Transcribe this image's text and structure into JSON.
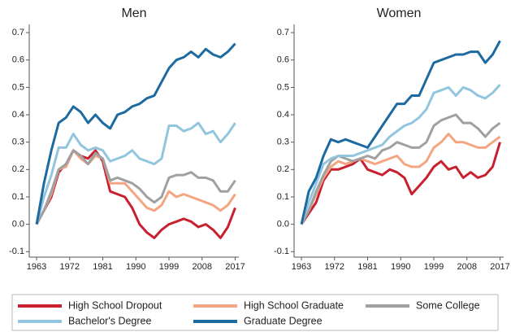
{
  "chart_data": [
    {
      "type": "line",
      "title": "Men",
      "x": [
        1963,
        1965,
        1967,
        1969,
        1971,
        1973,
        1975,
        1977,
        1979,
        1981,
        1983,
        1985,
        1987,
        1989,
        1991,
        1993,
        1995,
        1997,
        1999,
        2001,
        2003,
        2005,
        2007,
        2009,
        2011,
        2013,
        2015,
        2017
      ],
      "xlim": [
        1961,
        2018
      ],
      "xticks": [
        1963,
        1972,
        1981,
        1990,
        1999,
        2008,
        2017
      ],
      "ylim": [
        -0.12,
        0.73
      ],
      "yticks": [
        -0.1,
        {
          "value": 0,
          "label": "0.0"
        },
        0.1,
        0.2,
        0.3,
        0.4,
        0.5,
        0.6,
        0.7
      ],
      "series": [
        {
          "name": "High School Dropout",
          "color": "#c8202f",
          "values": [
            0,
            0.05,
            0.1,
            0.19,
            0.22,
            0.27,
            0.25,
            0.24,
            0.27,
            0.23,
            0.12,
            0.11,
            0.1,
            0.06,
            0.0,
            -0.03,
            -0.05,
            -0.02,
            0.0,
            0.01,
            0.02,
            0.01,
            -0.01,
            0.0,
            -0.02,
            -0.05,
            -0.01,
            0.06
          ]
        },
        {
          "name": "High School Graduate",
          "color": "#f4a582",
          "values": [
            0,
            0.05,
            0.11,
            0.2,
            0.21,
            0.27,
            0.24,
            0.22,
            0.25,
            0.24,
            0.15,
            0.15,
            0.15,
            0.12,
            0.09,
            0.06,
            0.05,
            0.07,
            0.12,
            0.1,
            0.11,
            0.1,
            0.09,
            0.08,
            0.07,
            0.05,
            0.07,
            0.11
          ]
        },
        {
          "name": "Some College",
          "color": "#a0a0a0",
          "values": [
            0,
            0.05,
            0.12,
            0.2,
            0.22,
            0.27,
            0.25,
            0.22,
            0.26,
            0.24,
            0.16,
            0.17,
            0.16,
            0.15,
            0.13,
            0.1,
            0.08,
            0.1,
            0.17,
            0.18,
            0.18,
            0.19,
            0.17,
            0.17,
            0.16,
            0.12,
            0.12,
            0.16
          ]
        },
        {
          "name": "Bachelor's Degree",
          "color": "#92c5de",
          "values": [
            0,
            0.1,
            0.18,
            0.28,
            0.28,
            0.33,
            0.29,
            0.27,
            0.28,
            0.27,
            0.23,
            0.24,
            0.25,
            0.27,
            0.24,
            0.23,
            0.22,
            0.24,
            0.36,
            0.36,
            0.34,
            0.35,
            0.37,
            0.33,
            0.34,
            0.3,
            0.33,
            0.37
          ]
        },
        {
          "name": "Graduate Degree",
          "color": "#1c6aa0",
          "values": [
            0,
            0.15,
            0.27,
            0.37,
            0.39,
            0.43,
            0.41,
            0.37,
            0.4,
            0.37,
            0.35,
            0.4,
            0.41,
            0.43,
            0.44,
            0.46,
            0.47,
            0.52,
            0.57,
            0.6,
            0.61,
            0.63,
            0.61,
            0.64,
            0.62,
            0.61,
            0.63,
            0.66
          ]
        }
      ]
    },
    {
      "type": "line",
      "title": "Women",
      "x": [
        1963,
        1965,
        1967,
        1969,
        1971,
        1973,
        1975,
        1977,
        1979,
        1981,
        1983,
        1985,
        1987,
        1989,
        1991,
        1993,
        1995,
        1997,
        1999,
        2001,
        2003,
        2005,
        2007,
        2009,
        2011,
        2013,
        2015,
        2017
      ],
      "xlim": [
        1961,
        2018
      ],
      "xticks": [
        1963,
        1972,
        1981,
        1990,
        1999,
        2008,
        2017
      ],
      "ylim": [
        -0.12,
        0.73
      ],
      "yticks": [
        -0.1,
        {
          "value": 0,
          "label": "0.0"
        },
        0.1,
        0.2,
        0.3,
        0.4,
        0.5,
        0.6,
        0.7
      ],
      "series": [
        {
          "name": "High School Dropout",
          "color": "#c8202f",
          "values": [
            0,
            0.04,
            0.08,
            0.16,
            0.2,
            0.2,
            0.21,
            0.22,
            0.24,
            0.2,
            0.19,
            0.18,
            0.2,
            0.19,
            0.17,
            0.11,
            0.14,
            0.17,
            0.21,
            0.23,
            0.2,
            0.21,
            0.17,
            0.19,
            0.17,
            0.18,
            0.21,
            0.3
          ]
        },
        {
          "name": "High School Graduate",
          "color": "#f4a582",
          "values": [
            0,
            0.05,
            0.11,
            0.17,
            0.21,
            0.23,
            0.22,
            0.23,
            0.24,
            0.23,
            0.22,
            0.23,
            0.24,
            0.25,
            0.22,
            0.21,
            0.21,
            0.23,
            0.28,
            0.3,
            0.33,
            0.3,
            0.3,
            0.29,
            0.28,
            0.28,
            0.3,
            0.32
          ]
        },
        {
          "name": "Some College",
          "color": "#a0a0a0",
          "values": [
            0,
            0.05,
            0.12,
            0.18,
            0.23,
            0.25,
            0.24,
            0.23,
            0.24,
            0.25,
            0.24,
            0.27,
            0.28,
            0.3,
            0.29,
            0.28,
            0.28,
            0.3,
            0.36,
            0.38,
            0.39,
            0.4,
            0.37,
            0.37,
            0.35,
            0.32,
            0.35,
            0.37
          ]
        },
        {
          "name": "Bachelor's Degree",
          "color": "#92c5de",
          "values": [
            0,
            0.08,
            0.15,
            0.22,
            0.24,
            0.25,
            0.25,
            0.25,
            0.26,
            0.27,
            0.28,
            0.29,
            0.32,
            0.34,
            0.36,
            0.37,
            0.39,
            0.42,
            0.48,
            0.49,
            0.5,
            0.47,
            0.5,
            0.49,
            0.47,
            0.46,
            0.48,
            0.51
          ]
        },
        {
          "name": "Graduate Degree",
          "color": "#1c6aa0",
          "values": [
            0,
            0.12,
            0.17,
            0.25,
            0.31,
            0.3,
            0.31,
            0.3,
            0.29,
            0.28,
            0.32,
            0.36,
            0.4,
            0.44,
            0.44,
            0.47,
            0.47,
            0.53,
            0.59,
            0.6,
            0.61,
            0.62,
            0.62,
            0.63,
            0.63,
            0.59,
            0.62,
            0.67
          ]
        }
      ]
    }
  ]
}
